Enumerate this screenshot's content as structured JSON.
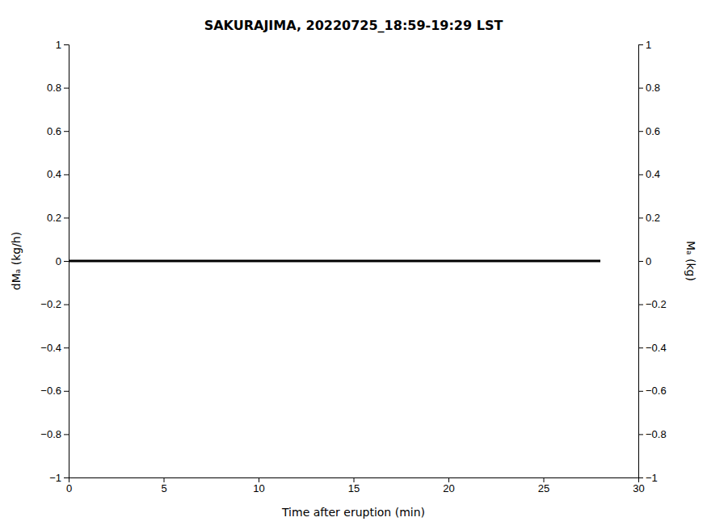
{
  "chart_data": {
    "type": "line",
    "title": "SAKURAJIMA, 20220725_18:59-19:29 LST",
    "x_label": "Time after eruption (min)",
    "y_label": "dMₐ (kg/h)",
    "y2_label": "Mₐ (kg)",
    "x": [
      0,
      28
    ],
    "series": [
      {
        "color": "#000000",
        "values": [
          0,
          0
        ]
      }
    ],
    "xlim": [
      0,
      30
    ],
    "xticks": [
      0,
      5,
      10,
      15,
      20,
      25,
      30
    ],
    "ylim": [
      -1,
      1
    ],
    "yticks": [
      {
        "value": -1.0,
        "label": "−1"
      },
      {
        "value": -0.8,
        "label": "−0.8"
      },
      {
        "value": -0.6,
        "label": "−0.6"
      },
      {
        "value": -0.4,
        "label": "−0.4"
      },
      {
        "value": -0.2,
        "label": "−0.2"
      },
      0,
      0.2,
      0.4,
      0.6,
      0.8,
      1
    ],
    "y2lim": [
      -1,
      1
    ],
    "y2ticks": [
      {
        "value": -1.0,
        "label": "−1"
      },
      {
        "value": -0.8,
        "label": "−0.8"
      },
      {
        "value": -0.6,
        "label": "−0.6"
      },
      {
        "value": -0.4,
        "label": "−0.4"
      },
      {
        "value": -0.2,
        "label": "−0.2"
      },
      0,
      0.2,
      0.4,
      0.6,
      0.8,
      1
    ],
    "grid": false
  }
}
